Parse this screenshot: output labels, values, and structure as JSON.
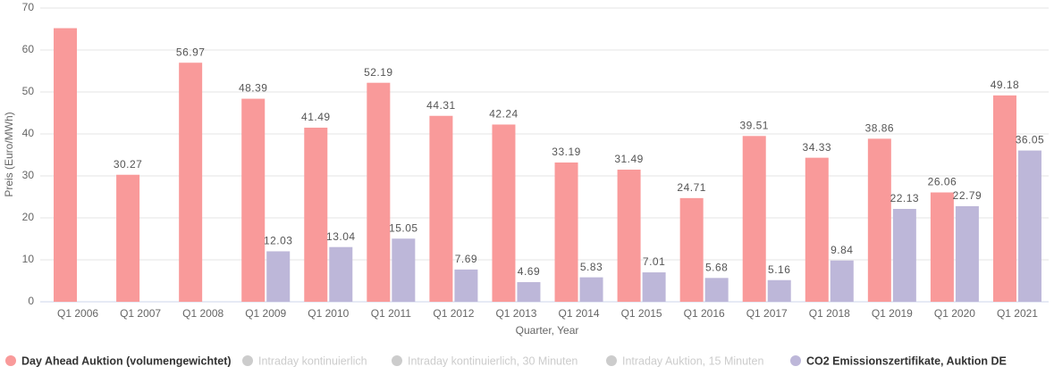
{
  "chart_data": {
    "type": "bar",
    "xlabel": "Quarter, Year",
    "ylabel": "Preis (Euro/MWh)",
    "categories": [
      "Q1 2006",
      "Q1 2007",
      "Q1 2008",
      "Q1 2009",
      "Q1 2010",
      "Q1 2011",
      "Q1 2012",
      "Q1 2013",
      "Q1 2014",
      "Q1 2015",
      "Q1 2016",
      "Q1 2017",
      "Q1 2018",
      "Q1 2019",
      "Q1 2020",
      "Q1 2021"
    ],
    "series": [
      {
        "name": "Day Ahead Auktion (volumengewichtet)",
        "color": "#f99a9a",
        "visible": true,
        "values": [
          65.2,
          30.27,
          56.97,
          48.39,
          41.49,
          52.19,
          44.31,
          42.24,
          33.19,
          31.49,
          24.71,
          39.51,
          34.33,
          38.86,
          26.06,
          49.18
        ],
        "value_labels": [
          null,
          "30.27",
          "56.97",
          "48.39",
          "41.49",
          "52.19",
          "44.31",
          "42.24",
          "33.19",
          "31.49",
          "24.71",
          "39.51",
          "34.33",
          "38.86",
          "26.06",
          "49.18"
        ]
      },
      {
        "name": "Intraday kontinuierlich",
        "color": "#cccccc",
        "visible": false,
        "values": [
          null,
          null,
          null,
          null,
          null,
          null,
          null,
          null,
          null,
          null,
          null,
          null,
          null,
          null,
          null,
          null
        ]
      },
      {
        "name": "Intraday kontinuierlich, 30 Minuten",
        "color": "#cccccc",
        "visible": false,
        "values": [
          null,
          null,
          null,
          null,
          null,
          null,
          null,
          null,
          null,
          null,
          null,
          null,
          null,
          null,
          null,
          null
        ]
      },
      {
        "name": "Intraday Auktion, 15 Minuten",
        "color": "#cccccc",
        "visible": false,
        "values": [
          null,
          null,
          null,
          null,
          null,
          null,
          null,
          null,
          null,
          null,
          null,
          null,
          null,
          null,
          null,
          null
        ]
      },
      {
        "name": "CO2 Emissionszertifikate, Auktion DE",
        "color": "#bdb7d9",
        "visible": true,
        "values": [
          null,
          null,
          null,
          12.03,
          13.04,
          15.05,
          7.69,
          4.69,
          5.83,
          7.01,
          5.68,
          5.16,
          9.84,
          22.13,
          22.79,
          36.05
        ]
      }
    ],
    "ylim": [
      0,
      70
    ],
    "yticks": [
      0,
      10,
      20,
      30,
      40,
      50,
      60,
      70
    ],
    "grid": true
  }
}
